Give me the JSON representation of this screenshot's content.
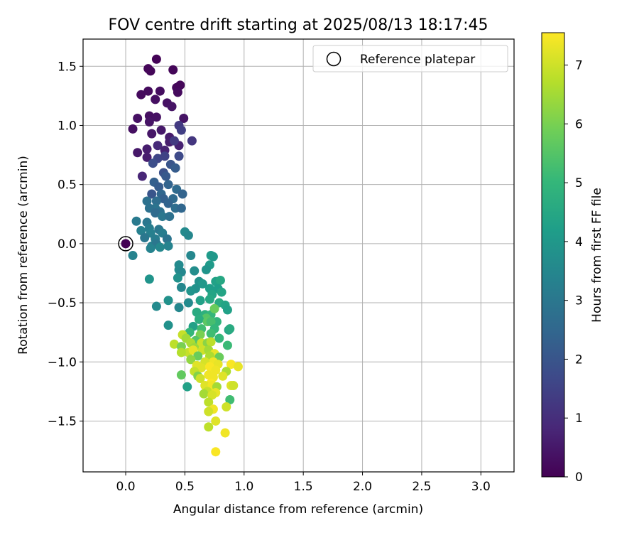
{
  "chart_data": {
    "type": "scatter",
    "title": "FOV centre drift starting at 2025/08/13 18:17:45",
    "xlabel": "Angular distance from reference (arcmin)",
    "ylabel": "Rotation from reference (arcmin)",
    "colorbar_label": "Hours from first FF file",
    "xlim": [
      -0.36,
      3.28
    ],
    "ylim": [
      -1.93,
      1.73
    ],
    "clim": [
      0,
      7.55
    ],
    "xticks": [
      0.0,
      0.5,
      1.0,
      1.5,
      2.0,
      2.5,
      3.0
    ],
    "xtick_labels": [
      "0.0",
      "0.5",
      "1.0",
      "1.5",
      "2.0",
      "2.5",
      "3.0"
    ],
    "yticks": [
      -1.5,
      -1.0,
      -0.5,
      0.0,
      0.5,
      1.0,
      1.5
    ],
    "ytick_labels": [
      "−1.5",
      "−1.0",
      "−0.5",
      "0.0",
      "0.5",
      "1.0",
      "1.5"
    ],
    "cticks": [
      0,
      1,
      2,
      3,
      4,
      5,
      6,
      7
    ],
    "ctick_labels": [
      "0",
      "1",
      "2",
      "3",
      "4",
      "5",
      "6",
      "7"
    ],
    "grid": true,
    "colormap": "viridis",
    "legend": {
      "position": "top-right",
      "label": "Reference platepar"
    },
    "reference_point": {
      "x": 0.0,
      "y": 0.0
    },
    "points": [
      [
        0.26,
        1.56,
        0.05
      ],
      [
        0.4,
        1.47,
        0.1
      ],
      [
        0.21,
        1.46,
        0.1
      ],
      [
        0.19,
        1.48,
        0.12
      ],
      [
        0.43,
        1.32,
        0.15
      ],
      [
        0.46,
        1.34,
        0.12
      ],
      [
        0.44,
        1.28,
        0.2
      ],
      [
        0.13,
        1.26,
        0.2
      ],
      [
        0.19,
        1.29,
        0.22
      ],
      [
        0.29,
        1.29,
        0.25
      ],
      [
        0.25,
        1.22,
        0.3
      ],
      [
        0.35,
        1.19,
        0.35
      ],
      [
        0.39,
        1.16,
        0.4
      ],
      [
        0.2,
        1.08,
        0.3
      ],
      [
        0.1,
        1.06,
        0.35
      ],
      [
        0.26,
        1.07,
        0.35
      ],
      [
        0.2,
        1.03,
        0.4
      ],
      [
        0.49,
        1.06,
        0.4
      ],
      [
        0.06,
        0.97,
        0.3
      ],
      [
        0.22,
        0.93,
        0.45
      ],
      [
        0.3,
        0.96,
        0.5
      ],
      [
        0.37,
        0.9,
        0.55
      ],
      [
        0.45,
        1.0,
        1.3
      ],
      [
        0.47,
        0.96,
        1.4
      ],
      [
        0.37,
        0.86,
        0.6
      ],
      [
        0.45,
        0.83,
        0.7
      ],
      [
        0.27,
        0.83,
        0.9
      ],
      [
        0.18,
        0.8,
        0.6
      ],
      [
        0.1,
        0.77,
        0.5
      ],
      [
        0.56,
        0.87,
        1.2
      ],
      [
        0.41,
        0.87,
        1.3
      ],
      [
        0.33,
        0.79,
        0.7
      ],
      [
        0.18,
        0.73,
        0.6
      ],
      [
        0.27,
        0.72,
        1.6
      ],
      [
        0.33,
        0.74,
        1.5
      ],
      [
        0.45,
        0.74,
        1.7
      ],
      [
        0.23,
        0.68,
        1.8
      ],
      [
        0.38,
        0.67,
        2.0
      ],
      [
        0.42,
        0.64,
        2.2
      ],
      [
        0.14,
        0.57,
        0.8
      ],
      [
        0.32,
        0.6,
        1.9
      ],
      [
        0.34,
        0.57,
        2.1
      ],
      [
        0.24,
        0.52,
        2.3
      ],
      [
        0.36,
        0.5,
        2.4
      ],
      [
        0.28,
        0.48,
        2.2
      ],
      [
        0.3,
        0.42,
        2.5
      ],
      [
        0.43,
        0.46,
        2.6
      ],
      [
        0.22,
        0.42,
        2.0
      ],
      [
        0.48,
        0.42,
        2.4
      ],
      [
        0.32,
        0.38,
        2.3
      ],
      [
        0.26,
        0.36,
        2.7
      ],
      [
        0.18,
        0.36,
        2.8
      ],
      [
        0.4,
        0.38,
        2.6
      ],
      [
        0.36,
        0.34,
        2.4
      ],
      [
        0.25,
        0.3,
        2.9
      ],
      [
        0.29,
        0.27,
        2.8
      ],
      [
        0.42,
        0.3,
        2.7
      ],
      [
        0.47,
        0.3,
        2.5
      ],
      [
        0.2,
        0.3,
        2.8
      ],
      [
        0.25,
        0.26,
        2.6
      ],
      [
        0.31,
        0.23,
        3.0
      ],
      [
        0.37,
        0.23,
        2.8
      ],
      [
        0.18,
        0.18,
        3.0
      ],
      [
        0.09,
        0.19,
        3.1
      ],
      [
        0.2,
        0.13,
        3.2
      ],
      [
        0.28,
        0.12,
        3.0
      ],
      [
        0.31,
        0.09,
        3.2
      ],
      [
        0.21,
        0.09,
        3.3
      ],
      [
        0.13,
        0.11,
        3.3
      ],
      [
        0.35,
        0.04,
        2.9
      ],
      [
        0.16,
        0.05,
        3.0
      ],
      [
        0.25,
        0.04,
        3.2
      ],
      [
        0.22,
        -0.02,
        3.3
      ],
      [
        0.26,
        0.0,
        3.0
      ],
      [
        0.29,
        -0.03,
        3.5
      ],
      [
        0.36,
        -0.02,
        3.4
      ],
      [
        0.21,
        -0.04,
        3.4
      ],
      [
        0.5,
        0.1,
        3.6
      ],
      [
        0.53,
        0.07,
        3.5
      ],
      [
        0.06,
        -0.1,
        3.4
      ],
      [
        0.55,
        -0.1,
        3.5
      ],
      [
        0.72,
        -0.1,
        4.1
      ],
      [
        0.74,
        -0.11,
        4.0
      ],
      [
        0.71,
        -0.18,
        4.1
      ],
      [
        0.45,
        -0.18,
        3.6
      ],
      [
        0.45,
        -0.22,
        3.6
      ],
      [
        0.68,
        -0.22,
        3.9
      ],
      [
        0.58,
        -0.23,
        3.7
      ],
      [
        0.47,
        -0.24,
        3.5
      ],
      [
        0.44,
        -0.29,
        3.8
      ],
      [
        0.62,
        -0.32,
        3.8
      ],
      [
        0.65,
        -0.34,
        4.0
      ],
      [
        0.76,
        -0.32,
        4.3
      ],
      [
        0.8,
        -0.31,
        4.5
      ],
      [
        0.2,
        -0.3,
        3.9
      ],
      [
        0.59,
        -0.38,
        3.8
      ],
      [
        0.71,
        -0.38,
        4.2
      ],
      [
        0.78,
        -0.38,
        4.2
      ],
      [
        0.81,
        -0.41,
        4.4
      ],
      [
        0.47,
        -0.37,
        3.5
      ],
      [
        0.55,
        -0.4,
        3.9
      ],
      [
        0.73,
        -0.43,
        4.4
      ],
      [
        0.36,
        -0.48,
        3.8
      ],
      [
        0.53,
        -0.5,
        3.6
      ],
      [
        0.63,
        -0.48,
        4.3
      ],
      [
        0.71,
        -0.47,
        4.5
      ],
      [
        0.79,
        -0.5,
        4.6
      ],
      [
        0.84,
        -0.52,
        4.4
      ],
      [
        0.26,
        -0.53,
        3.6
      ],
      [
        0.45,
        -0.54,
        3.5
      ],
      [
        0.86,
        -0.56,
        4.3
      ],
      [
        0.6,
        -0.58,
        4.6
      ],
      [
        0.67,
        -0.6,
        4.8
      ],
      [
        0.72,
        -0.6,
        5.0
      ],
      [
        0.75,
        -0.55,
        5.8
      ],
      [
        0.68,
        -0.63,
        5.5
      ],
      [
        0.62,
        -0.64,
        4.7
      ],
      [
        0.77,
        -0.66,
        4.9
      ],
      [
        0.69,
        -0.66,
        5.6
      ],
      [
        0.72,
        -0.66,
        5.3
      ],
      [
        0.36,
        -0.69,
        3.8
      ],
      [
        0.57,
        -0.7,
        4.3
      ],
      [
        0.64,
        -0.72,
        5.2
      ],
      [
        0.75,
        -0.72,
        5.0
      ],
      [
        0.87,
        -0.73,
        4.4
      ],
      [
        0.88,
        -0.72,
        4.6
      ],
      [
        0.54,
        -0.75,
        5.0
      ],
      [
        0.72,
        -0.76,
        5.2
      ],
      [
        0.63,
        -0.77,
        6.0
      ],
      [
        0.48,
        -0.77,
        6.9
      ],
      [
        0.51,
        -0.8,
        6.5
      ],
      [
        0.79,
        -0.8,
        5.0
      ],
      [
        0.59,
        -0.82,
        5.5
      ],
      [
        0.55,
        -0.84,
        6.6
      ],
      [
        0.64,
        -0.84,
        7.0
      ],
      [
        0.69,
        -0.84,
        6.2
      ],
      [
        0.72,
        -0.83,
        6.8
      ],
      [
        0.41,
        -0.85,
        6.8
      ],
      [
        0.47,
        -0.87,
        6.0
      ],
      [
        0.58,
        -0.88,
        6.4
      ],
      [
        0.86,
        -0.86,
        5.1
      ],
      [
        0.53,
        -0.92,
        6.9
      ],
      [
        0.57,
        -0.9,
        7.3
      ],
      [
        0.65,
        -0.9,
        7.0
      ],
      [
        0.7,
        -0.9,
        6.5
      ],
      [
        0.47,
        -0.92,
        6.7
      ],
      [
        0.75,
        -0.93,
        7.3
      ],
      [
        0.61,
        -0.95,
        5.8
      ],
      [
        0.71,
        -0.95,
        6.6
      ],
      [
        0.79,
        -0.96,
        5.8
      ],
      [
        0.55,
        -0.98,
        6.3
      ],
      [
        0.74,
        -1.0,
        7.4
      ],
      [
        0.67,
        -1.0,
        7.1
      ],
      [
        0.78,
        -1.02,
        7.3
      ],
      [
        0.6,
        -1.03,
        7.2
      ],
      [
        0.89,
        -1.02,
        7.5
      ],
      [
        0.95,
        -1.04,
        7.3
      ],
      [
        0.64,
        -1.05,
        7.2
      ],
      [
        0.71,
        -1.04,
        7.5
      ],
      [
        0.76,
        -1.07,
        7.4
      ],
      [
        0.58,
        -1.08,
        6.9
      ],
      [
        0.85,
        -1.08,
        6.6
      ],
      [
        0.47,
        -1.11,
        5.7
      ],
      [
        0.7,
        -1.11,
        7.4
      ],
      [
        0.61,
        -1.12,
        6.1
      ],
      [
        0.74,
        -1.13,
        7.4
      ],
      [
        0.82,
        -1.12,
        7.2
      ],
      [
        0.63,
        -1.14,
        7.0
      ],
      [
        0.72,
        -1.18,
        7.5
      ],
      [
        0.67,
        -1.2,
        7.2
      ],
      [
        0.52,
        -1.21,
        4.3
      ],
      [
        0.73,
        -1.2,
        7.4
      ],
      [
        0.77,
        -1.21,
        6.5
      ],
      [
        0.89,
        -1.2,
        7.2
      ],
      [
        0.91,
        -1.2,
        7.0
      ],
      [
        0.69,
        -1.25,
        6.9
      ],
      [
        0.76,
        -1.26,
        7.3
      ],
      [
        0.66,
        -1.27,
        6.5
      ],
      [
        0.73,
        -1.28,
        7.1
      ],
      [
        0.88,
        -1.32,
        5.2
      ],
      [
        0.7,
        -1.34,
        6.8
      ],
      [
        0.85,
        -1.38,
        7.0
      ],
      [
        0.74,
        -1.4,
        7.4
      ],
      [
        0.7,
        -1.42,
        7.0
      ],
      [
        0.76,
        -1.5,
        7.2
      ],
      [
        0.7,
        -1.55,
        6.8
      ],
      [
        0.84,
        -1.6,
        7.4
      ],
      [
        0.76,
        -1.76,
        7.5
      ]
    ]
  }
}
